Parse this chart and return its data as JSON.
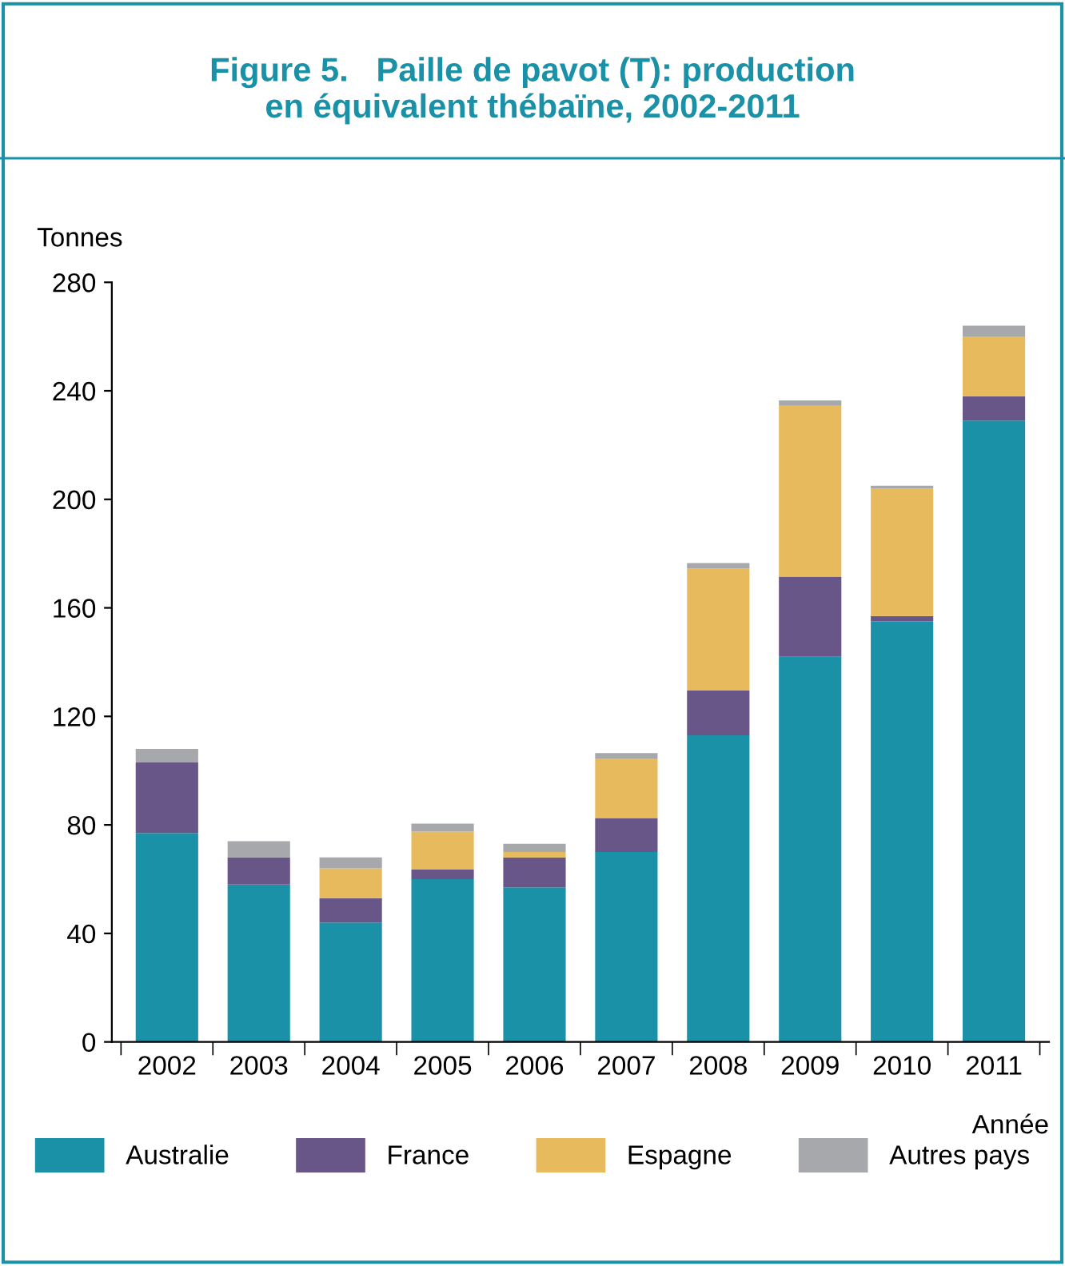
{
  "chart_data": {
    "type": "bar",
    "stacked": true,
    "title": "Figure 5.   Paille de pavot (T): production\nen équivalent thébaïne, 2002-2011",
    "ylabel": "Tonnes",
    "xlabel": "Année",
    "categories": [
      "2002",
      "2003",
      "2004",
      "2005",
      "2006",
      "2007",
      "2008",
      "2009",
      "2010",
      "2011"
    ],
    "series": [
      {
        "name": "Australie",
        "color": "#1b91a8",
        "values": [
          77,
          58,
          44,
          60,
          57,
          70,
          113,
          142,
          155,
          229
        ]
      },
      {
        "name": "France",
        "color": "#685688",
        "values": [
          26,
          10,
          9,
          3.5,
          11,
          12.5,
          16.5,
          29.5,
          2,
          9
        ]
      },
      {
        "name": "Espagne",
        "color": "#e8ba5e",
        "values": [
          0,
          0,
          11,
          14,
          2,
          22,
          45,
          63,
          47,
          22
        ]
      },
      {
        "name": "Autres pays",
        "color": "#a7a8ab",
        "values": [
          5,
          6,
          4,
          3,
          3,
          2,
          2,
          2,
          1,
          4
        ]
      }
    ],
    "ylim": [
      0,
      280
    ],
    "yticks": [
      0,
      40,
      80,
      120,
      160,
      200,
      240,
      280
    ],
    "grid": false,
    "legend": "bottom"
  }
}
